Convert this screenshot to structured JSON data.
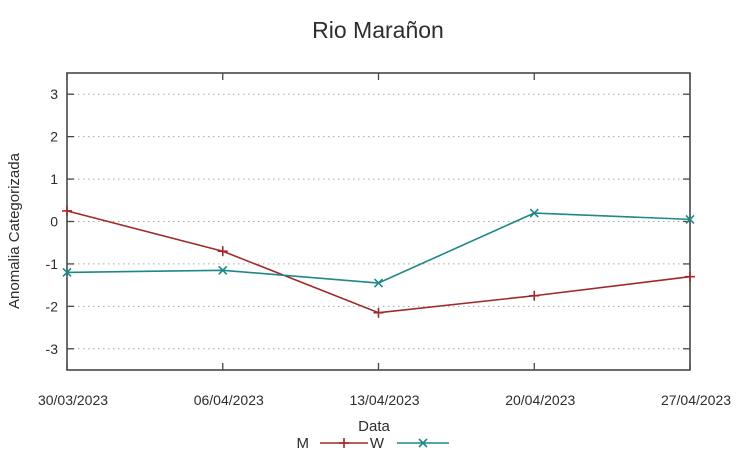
{
  "title": "Rio Marañon",
  "axes": {
    "x_label": "Data",
    "y_label": "Anomalia Categorizada"
  },
  "legend": {
    "position": "bottom-center",
    "items": [
      "M",
      "W"
    ]
  },
  "colors": {
    "background": "#ffffff",
    "text": "#2d2d2d",
    "grid": "#a8a8a8",
    "border": "#484848",
    "series_m": "#a02828",
    "series_w": "#1d8888"
  },
  "chart_data": {
    "type": "line",
    "title": "Rio Marañon",
    "xlabel": "Data",
    "ylabel": "Anomalia Categorizada",
    "categories": [
      "30/03/2023",
      "06/04/2023",
      "13/04/2023",
      "20/04/2023",
      "27/04/2023"
    ],
    "series": [
      {
        "name": "M",
        "color": "#a02828",
        "marker": "plus",
        "values": [
          0.25,
          -0.7,
          -2.15,
          -1.75,
          -1.3
        ]
      },
      {
        "name": "W",
        "color": "#1d8888",
        "marker": "cross",
        "values": [
          -1.2,
          -1.15,
          -1.45,
          0.2,
          0.05
        ]
      }
    ],
    "ylim": [
      -3.5,
      3.5
    ],
    "yticks": [
      3,
      2,
      1,
      0,
      -1,
      -2,
      -3
    ],
    "grid": true,
    "grid_style": "dotted",
    "legend_position": "below-x-label"
  }
}
